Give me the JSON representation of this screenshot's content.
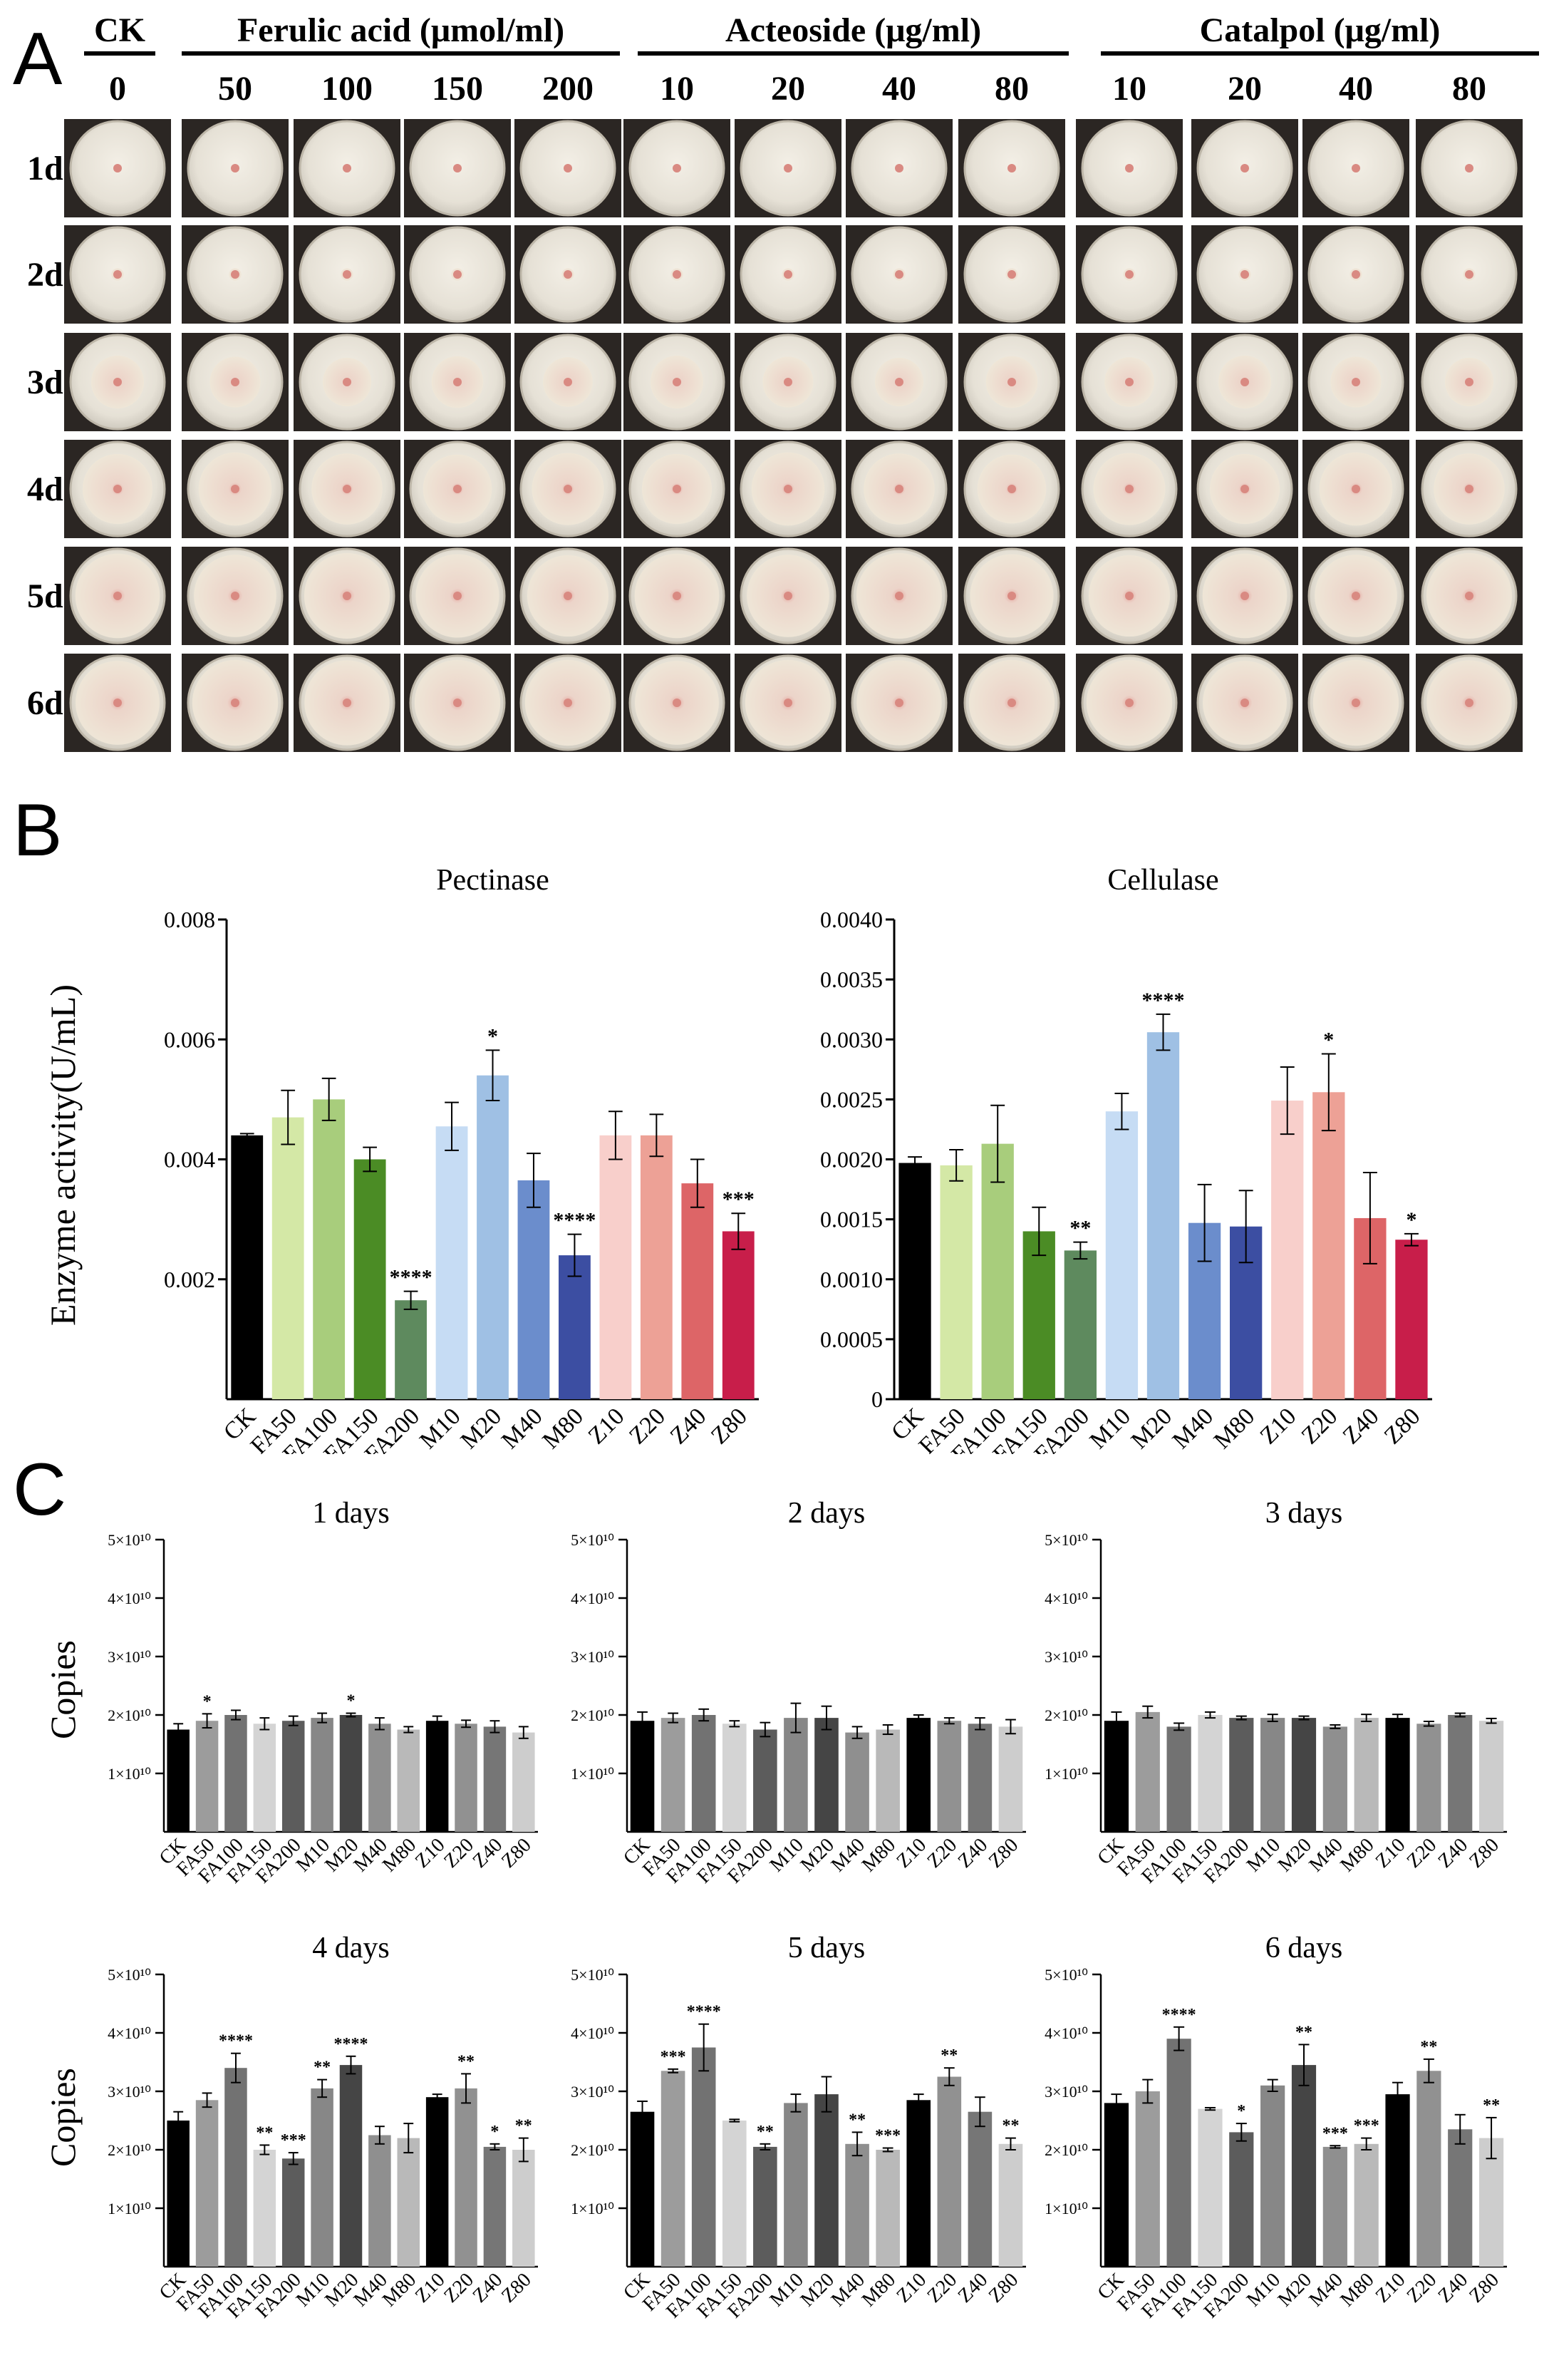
{
  "panel_a": {
    "label": "A",
    "groups": [
      {
        "name": "CK",
        "concentrations": [
          "0"
        ]
      },
      {
        "name": "Ferulic acid (μmol/ml)",
        "concentrations": [
          "50",
          "100",
          "150",
          "200"
        ]
      },
      {
        "name": "Acteoside (μg/ml)",
        "concentrations": [
          "10",
          "20",
          "40",
          "80"
        ]
      },
      {
        "name": "Catalpol (μg/ml)",
        "concentrations": [
          "10",
          "20",
          "40",
          "80"
        ]
      }
    ],
    "days": [
      "1d",
      "2d",
      "3d",
      "4d",
      "5d",
      "6d"
    ],
    "colony_size_rel": [
      0.06,
      0.14,
      0.55,
      0.78,
      0.92,
      0.95
    ]
  },
  "panel_b": {
    "label": "B",
    "ylabel": "Enzyme activity(U/mL)"
  },
  "panel_c": {
    "label": "C",
    "ylabel": "Copies",
    "ytick_labels": [
      "1×10¹⁰",
      "2×10¹⁰",
      "3×10¹⁰",
      "4×10¹⁰",
      "5×10¹⁰"
    ]
  },
  "chart_data": [
    {
      "type": "bar",
      "id": "pectinase",
      "title": "Pectinase",
      "categories": [
        "CK",
        "FA50",
        "FA100",
        "FA150",
        "FA200",
        "M10",
        "M20",
        "M40",
        "M80",
        "Z10",
        "Z20",
        "Z40",
        "Z80"
      ],
      "values": [
        0.0044,
        0.0047,
        0.005,
        0.004,
        0.00165,
        0.00455,
        0.0054,
        0.00365,
        0.0024,
        0.0044,
        0.0044,
        0.0036,
        0.0028
      ],
      "errors": [
        3e-05,
        0.00045,
        0.00035,
        0.0002,
        0.00015,
        0.0004,
        0.00042,
        0.00045,
        0.00035,
        0.0004,
        0.00035,
        0.0004,
        0.0003
      ],
      "sig": [
        "",
        "",
        "",
        "",
        "****",
        "",
        "*",
        "",
        "****",
        "",
        "",
        "",
        "***"
      ],
      "colors": [
        "#000000",
        "#d4e8a6",
        "#a8cd7c",
        "#4b8c25",
        "#5e8a5e",
        "#c6dcf4",
        "#9fc0e4",
        "#6b8dcc",
        "#3c4ea2",
        "#f8cfcb",
        "#eda196",
        "#dd6567",
        "#c81e4a"
      ],
      "ylim": [
        0,
        0.008
      ],
      "yticks": [
        0.002,
        0.004,
        0.006,
        0.008
      ],
      "ytick_labels": [
        "0.002",
        "0.004",
        "0.006",
        "0.008"
      ],
      "ylabel": "Enzyme activity(U/mL)"
    },
    {
      "type": "bar",
      "id": "cellulase",
      "title": "Cellulase",
      "categories": [
        "CK",
        "FA50",
        "FA100",
        "FA150",
        "FA200",
        "M10",
        "M20",
        "M40",
        "M80",
        "Z10",
        "Z20",
        "Z40",
        "Z80"
      ],
      "values": [
        0.00197,
        0.00195,
        0.00213,
        0.0014,
        0.00124,
        0.0024,
        0.00306,
        0.00147,
        0.00144,
        0.00249,
        0.00256,
        0.00151,
        0.00133
      ],
      "errors": [
        5e-05,
        0.00013,
        0.00032,
        0.0002,
        7e-05,
        0.00015,
        0.00015,
        0.00032,
        0.0003,
        0.00028,
        0.00032,
        0.00038,
        5e-05
      ],
      "sig": [
        "",
        "",
        "",
        "",
        "**",
        "",
        "****",
        "",
        "",
        "",
        "*",
        "",
        "*"
      ],
      "colors": [
        "#000000",
        "#d4e8a6",
        "#a8cd7c",
        "#4b8c25",
        "#5e8a5e",
        "#c6dcf4",
        "#9fc0e4",
        "#6b8dcc",
        "#3c4ea2",
        "#f8cfcb",
        "#eda196",
        "#dd6567",
        "#c81e4a"
      ],
      "ylim": [
        0,
        0.004
      ],
      "yticks": [
        0,
        0.0005,
        0.001,
        0.0015,
        0.002,
        0.0025,
        0.003,
        0.0035,
        0.004
      ],
      "ytick_labels": [
        "0",
        "0.0005",
        "0.0010",
        "0.0015",
        "0.0020",
        "0.0025",
        "0.0030",
        "0.0035",
        "0.0040"
      ],
      "ylabel": ""
    },
    {
      "type": "bar",
      "id": "day1",
      "title": "1 days",
      "categories": [
        "CK",
        "FA50",
        "FA100",
        "FA150",
        "FA200",
        "M10",
        "M20",
        "M40",
        "M80",
        "Z10",
        "Z20",
        "Z40",
        "Z80"
      ],
      "values": [
        1.75,
        1.9,
        2.0,
        1.85,
        1.9,
        1.95,
        2.0,
        1.85,
        1.75,
        1.9,
        1.85,
        1.8,
        1.7
      ],
      "errors": [
        0.1,
        0.12,
        0.08,
        0.1,
        0.08,
        0.08,
        0.03,
        0.1,
        0.05,
        0.08,
        0.06,
        0.1,
        0.1
      ],
      "sig": [
        "",
        "*",
        "",
        "",
        "",
        "",
        "*",
        "",
        "",
        "",
        "",
        "",
        ""
      ],
      "colors": [
        "#000000",
        "#9c9c9c",
        "#727272",
        "#d4d4d4",
        "#5c5c5c",
        "#878787",
        "#454545",
        "#8f8f8f",
        "#b9b9b9",
        "#000000",
        "#919191",
        "#767676",
        "#cdcdcd"
      ],
      "ylim": [
        0,
        5
      ],
      "yticks": [
        1,
        2,
        3,
        4,
        5
      ],
      "ylabel": "Copies",
      "unit": "×10¹⁰"
    },
    {
      "type": "bar",
      "id": "day2",
      "title": "2 days",
      "categories": [
        "CK",
        "FA50",
        "FA100",
        "FA150",
        "FA200",
        "M10",
        "M20",
        "M40",
        "M80",
        "Z10",
        "Z20",
        "Z40",
        "Z80"
      ],
      "values": [
        1.9,
        1.95,
        2.0,
        1.85,
        1.75,
        1.95,
        1.95,
        1.7,
        1.75,
        1.95,
        1.9,
        1.85,
        1.8
      ],
      "errors": [
        0.15,
        0.08,
        0.1,
        0.05,
        0.12,
        0.25,
        0.2,
        0.1,
        0.08,
        0.05,
        0.05,
        0.1,
        0.12
      ],
      "sig": [
        "",
        "",
        "",
        "",
        "",
        "",
        "",
        "",
        "",
        "",
        "",
        "",
        ""
      ],
      "colors": [
        "#000000",
        "#9c9c9c",
        "#727272",
        "#d4d4d4",
        "#5c5c5c",
        "#878787",
        "#454545",
        "#8f8f8f",
        "#b9b9b9",
        "#000000",
        "#919191",
        "#767676",
        "#cdcdcd"
      ],
      "ylim": [
        0,
        5
      ],
      "yticks": [
        1,
        2,
        3,
        4,
        5
      ],
      "ylabel": "",
      "unit": "×10¹⁰"
    },
    {
      "type": "bar",
      "id": "day3",
      "title": "3 days",
      "categories": [
        "CK",
        "FA50",
        "FA100",
        "FA150",
        "FA200",
        "M10",
        "M20",
        "M40",
        "M80",
        "Z10",
        "Z20",
        "Z40",
        "Z80"
      ],
      "values": [
        1.9,
        2.05,
        1.8,
        2.0,
        1.95,
        1.95,
        1.95,
        1.8,
        1.95,
        1.95,
        1.85,
        2.0,
        1.9
      ],
      "errors": [
        0.15,
        0.1,
        0.06,
        0.05,
        0.03,
        0.06,
        0.03,
        0.03,
        0.06,
        0.06,
        0.04,
        0.03,
        0.04
      ],
      "sig": [
        "",
        "",
        "",
        "",
        "",
        "",
        "",
        "",
        "",
        "",
        "",
        "",
        ""
      ],
      "colors": [
        "#000000",
        "#9c9c9c",
        "#727272",
        "#d4d4d4",
        "#5c5c5c",
        "#878787",
        "#454545",
        "#8f8f8f",
        "#b9b9b9",
        "#000000",
        "#919191",
        "#767676",
        "#cdcdcd"
      ],
      "ylim": [
        0,
        5
      ],
      "yticks": [
        1,
        2,
        3,
        4,
        5
      ],
      "ylabel": "",
      "unit": "×10¹⁰"
    },
    {
      "type": "bar",
      "id": "day4",
      "title": "4 days",
      "categories": [
        "CK",
        "FA50",
        "FA100",
        "FA150",
        "FA200",
        "M10",
        "M20",
        "M40",
        "M80",
        "Z10",
        "Z20",
        "Z40",
        "Z80"
      ],
      "values": [
        2.5,
        2.85,
        3.4,
        2.0,
        1.85,
        3.05,
        3.45,
        2.25,
        2.2,
        2.9,
        3.05,
        2.05,
        2.0
      ],
      "errors": [
        0.15,
        0.12,
        0.25,
        0.08,
        0.1,
        0.15,
        0.15,
        0.15,
        0.25,
        0.05,
        0.25,
        0.05,
        0.2
      ],
      "sig": [
        "",
        "",
        "****",
        "**",
        "***",
        "**",
        "****",
        "",
        "",
        "",
        "**",
        "*",
        "**"
      ],
      "colors": [
        "#000000",
        "#9c9c9c",
        "#727272",
        "#d4d4d4",
        "#5c5c5c",
        "#878787",
        "#454545",
        "#8f8f8f",
        "#b9b9b9",
        "#000000",
        "#919191",
        "#767676",
        "#cdcdcd"
      ],
      "ylim": [
        0,
        5
      ],
      "yticks": [
        1,
        2,
        3,
        4,
        5
      ],
      "ylabel": "Copies",
      "unit": "×10¹⁰"
    },
    {
      "type": "bar",
      "id": "day5",
      "title": "5 days",
      "categories": [
        "CK",
        "FA50",
        "FA100",
        "FA150",
        "FA200",
        "M10",
        "M20",
        "M40",
        "M80",
        "Z10",
        "Z20",
        "Z40",
        "Z80"
      ],
      "values": [
        2.65,
        3.35,
        3.75,
        2.5,
        2.05,
        2.8,
        2.95,
        2.1,
        2.0,
        2.85,
        3.25,
        2.65,
        2.1
      ],
      "errors": [
        0.18,
        0.03,
        0.4,
        0.02,
        0.05,
        0.15,
        0.3,
        0.2,
        0.03,
        0.1,
        0.15,
        0.25,
        0.1
      ],
      "sig": [
        "",
        "***",
        "****",
        "",
        "**",
        "",
        "",
        "**",
        "***",
        "",
        "**",
        "",
        "**"
      ],
      "colors": [
        "#000000",
        "#9c9c9c",
        "#727272",
        "#d4d4d4",
        "#5c5c5c",
        "#878787",
        "#454545",
        "#8f8f8f",
        "#b9b9b9",
        "#000000",
        "#919191",
        "#767676",
        "#cdcdcd"
      ],
      "ylim": [
        0,
        5
      ],
      "yticks": [
        1,
        2,
        3,
        4,
        5
      ],
      "ylabel": "",
      "unit": "×10¹⁰"
    },
    {
      "type": "bar",
      "id": "day6",
      "title": "6 days",
      "categories": [
        "CK",
        "FA50",
        "FA100",
        "FA150",
        "FA200",
        "M10",
        "M20",
        "M40",
        "M80",
        "Z10",
        "Z20",
        "Z40",
        "Z80"
      ],
      "values": [
        2.8,
        3.0,
        3.9,
        2.7,
        2.3,
        3.1,
        3.45,
        2.05,
        2.1,
        2.95,
        3.35,
        2.35,
        2.2
      ],
      "errors": [
        0.15,
        0.2,
        0.2,
        0.02,
        0.15,
        0.1,
        0.35,
        0.02,
        0.1,
        0.2,
        0.2,
        0.25,
        0.35
      ],
      "sig": [
        "",
        "",
        "****",
        "",
        "*",
        "",
        "**",
        "***",
        "***",
        "",
        "**",
        "",
        "**"
      ],
      "colors": [
        "#000000",
        "#9c9c9c",
        "#727272",
        "#d4d4d4",
        "#5c5c5c",
        "#878787",
        "#454545",
        "#8f8f8f",
        "#b9b9b9",
        "#000000",
        "#919191",
        "#767676",
        "#cdcdcd"
      ],
      "ylim": [
        0,
        5
      ],
      "yticks": [
        1,
        2,
        3,
        4,
        5
      ],
      "ylabel": "",
      "unit": "×10¹⁰"
    }
  ]
}
